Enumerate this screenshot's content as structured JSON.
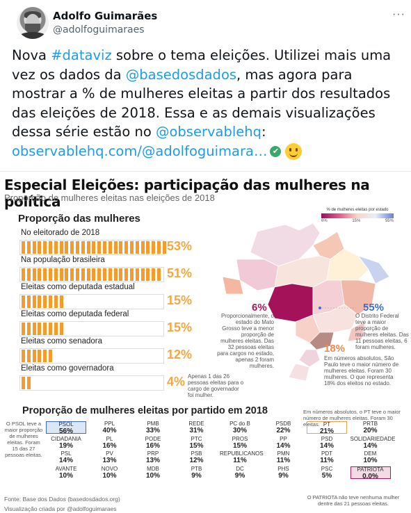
{
  "header": {
    "name": "Adolfo Guimarães",
    "handle": "@adolfoguimaraes",
    "more": "···"
  },
  "tweet": {
    "t1": "Nova  ",
    "hashtag": "#dataviz",
    "t2": " sobre o tema eleições. Utilizei mais uma vez os dados da ",
    "mention1": "@basedosdados",
    "t3": ", mas agora para mostrar a % de mulheres eleitas a partir dos resultados das eleições de 2018. Essa e as demais visualizações dessa série estão no ",
    "mention2": "@observablehq",
    "t4": ":",
    "url": "observablehq.com/@adolfoguimara…",
    "check": "✔"
  },
  "card": {
    "title": "Especial Eleições: participação das mulheres na política",
    "subtitle": "Proporção de mulheres eleitas nas eleições de 2018",
    "section1": "Proporção das mulheres",
    "rows": [
      {
        "label": "No eleitorado de 2018",
        "pct": "53%",
        "value": 53
      },
      {
        "label": "Na população brasileira",
        "pct": "51%",
        "value": 51
      },
      {
        "label": "Eleitas como deputada estadual",
        "pct": "15%",
        "value": 15
      },
      {
        "label": "Eleitas como deputada federal",
        "pct": "15%",
        "value": 15
      },
      {
        "label": "Eleitas como senadora",
        "pct": "12%",
        "value": 12
      },
      {
        "label": "Eleitas como governadora",
        "pct": "4%",
        "value": 4
      }
    ],
    "gov_note": "Apenas 1 das 26 pessoas eleitas para o cargo de governador foi mulher.",
    "legend": {
      "title": "% de mulheres eleitas por estado",
      "min": "6%",
      "mid": "15%",
      "max": "55%"
    },
    "mt": {
      "value": "6%",
      "note": "Proporcionalmente, o estado do Mato Grosso teve a menor proporção de mulheres eleitas. Das 32 pessoas eleitas para cargos no estado, apenas 2 foram mulheres."
    },
    "df": {
      "value": "55%",
      "note": "O Distrito Federal teve a maior proporção de mulheres eleitas. Das 11 pessoas eleitas, 6 foram mulheres."
    },
    "sp": {
      "value": "18%",
      "note": "Em números absolutos, São Paulo teve o maior número de mulheres eleitas. Foram 30 mulheres. O que representa 18% dos eleitos no estado."
    },
    "section2": "Proporção de mulheres eleitas por partido em 2018",
    "pt_note": "Em números absolutos, o PT teve o maior número de mulheres eleitas. Foram 30 eleitas.",
    "psol_note": "O PSOL teve a maior proporção de mulheres eleitas. Foram 15 das 27 pessoas eleitas.",
    "patriota_note": "O PATRIOTA não teve nenhuma mulher dentre das 21 pessoas eleitas.",
    "parties": [
      [
        "PSOL",
        "56%"
      ],
      [
        "PPL",
        "40%"
      ],
      [
        "PMB",
        "33%"
      ],
      [
        "REDE",
        "31%"
      ],
      [
        "PC do B",
        "30%"
      ],
      [
        "PSDB",
        "22%"
      ],
      [
        "PT",
        "21%"
      ],
      [
        "PRTB",
        "20%"
      ],
      [
        "CIDADANIA",
        "19%"
      ],
      [
        "PL",
        "16%"
      ],
      [
        "PODE",
        "16%"
      ],
      [
        "PTC",
        "15%"
      ],
      [
        "PROS",
        "15%"
      ],
      [
        "PP",
        "14%"
      ],
      [
        "PSD",
        "14%"
      ],
      [
        "SOLIDARIEDADE",
        "14%"
      ],
      [
        "PSL",
        "14%"
      ],
      [
        "PV",
        "13%"
      ],
      [
        "PRP",
        "13%"
      ],
      [
        "PSB",
        "12%"
      ],
      [
        "REPUBLICANOS",
        "11%"
      ],
      [
        "PMN",
        "11%"
      ],
      [
        "PDT",
        "11%"
      ],
      [
        "DEM",
        "10%"
      ],
      [
        "AVANTE",
        "10%"
      ],
      [
        "NOVO",
        "10%"
      ],
      [
        "MDB",
        "10%"
      ],
      [
        "PTB",
        "9%"
      ],
      [
        "DC",
        "9%"
      ],
      [
        "PHS",
        "9%"
      ],
      [
        "PSC",
        "5%"
      ],
      [
        "PATRIOTA",
        "0.0%"
      ]
    ],
    "source": "Fonte: Base dos Dados (basedosdados.org)",
    "credit": "Visualização criada por @adolfoguimaraes"
  }
}
